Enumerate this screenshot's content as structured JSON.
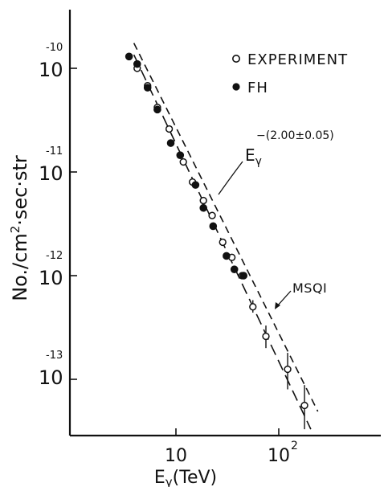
{
  "chart_data": {
    "type": "scatter",
    "title": "",
    "xlabel": {
      "main": "E",
      "sub": "γ",
      "rest": "(TeV)"
    },
    "ylabel": {
      "main": "No./cm",
      "sup": "2",
      "rest": "·sec·str"
    },
    "x_scale": "log",
    "y_scale": "log",
    "xlim": [
      1.2,
      700
    ],
    "ylim": [
      2.4e-14,
      1.75e-10
    ],
    "x_ticks": [
      {
        "value": 10,
        "label": "10",
        "sup": ""
      },
      {
        "value": 100,
        "label": "10",
        "sup": "2"
      }
    ],
    "y_ticks": [
      {
        "value": 1e-10,
        "label": "10",
        "sup": "-10"
      },
      {
        "value": 1e-11,
        "label": "10",
        "sup": "-11"
      },
      {
        "value": 1e-12,
        "label": "10",
        "sup": "-12"
      },
      {
        "value": 1e-13,
        "label": "10",
        "sup": "-13"
      }
    ],
    "grid": false,
    "legend_position": "top-right",
    "series": [
      {
        "name": "EXPERIMENT",
        "marker": "open-circle",
        "points": [
          {
            "x": 4.2,
            "y": 1e-10
          },
          {
            "x": 5.3,
            "y": 6.8e-11
          },
          {
            "x": 6.6,
            "y": 4.2e-11
          },
          {
            "x": 8.6,
            "y": 2.6e-11
          },
          {
            "x": 11.8,
            "y": 1.25e-11
          },
          {
            "x": 14.5,
            "y": 8e-12
          },
          {
            "x": 18.5,
            "y": 5.3e-12
          },
          {
            "x": 22.5,
            "y": 3.8e-12
          },
          {
            "x": 28.5,
            "y": 2.1e-12
          },
          {
            "x": 35.0,
            "y": 1.5e-12
          },
          {
            "x": 44.0,
            "y": 1e-12
          },
          {
            "x": 56.0,
            "y": 5e-13,
            "yerr_lo": 4.4e-13,
            "yerr_hi": 5.8e-13
          },
          {
            "x": 75.0,
            "y": 2.6e-13,
            "yerr_lo": 2e-13,
            "yerr_hi": 3.3e-13
          },
          {
            "x": 122.0,
            "y": 1.25e-13,
            "yerr_lo": 8e-14,
            "yerr_hi": 1.8e-13
          },
          {
            "x": 178.0,
            "y": 5.6e-14,
            "yerr_lo": 3.3e-14,
            "yerr_hi": 8.8e-14
          }
        ]
      },
      {
        "name": "FH",
        "marker": "filled-circle",
        "points": [
          {
            "x": 3.5,
            "y": 1.3e-10
          },
          {
            "x": 4.2,
            "y": 1.1e-10
          },
          {
            "x": 5.3,
            "y": 6.5e-11
          },
          {
            "x": 6.6,
            "y": 4e-11
          },
          {
            "x": 8.9,
            "y": 1.9e-11
          },
          {
            "x": 11.0,
            "y": 1.45e-11
          },
          {
            "x": 15.5,
            "y": 7.5e-12
          },
          {
            "x": 18.5,
            "y": 4.5e-12
          },
          {
            "x": 23.0,
            "y": 3e-12
          },
          {
            "x": 31.0,
            "y": 1.55e-12
          },
          {
            "x": 37.0,
            "y": 1.15e-12
          },
          {
            "x": 45.5,
            "y": 1e-12
          }
        ]
      }
    ],
    "lines": [
      {
        "style": "dashed",
        "from": {
          "x": 3.9,
          "y": 1.75e-10
        },
        "to": {
          "x": 240,
          "y": 4.9e-14
        }
      },
      {
        "style": "long-dashed",
        "from": {
          "x": 3.9,
          "y": 1.35e-10
        },
        "to": {
          "x": 205,
          "y": 3.3e-14
        }
      }
    ],
    "annotations": [
      {
        "id": "power-law",
        "main": "E",
        "sub": "γ",
        "sup": "−(2.00±0.05)"
      },
      {
        "id": "msqi",
        "text": "MSQI"
      }
    ]
  }
}
